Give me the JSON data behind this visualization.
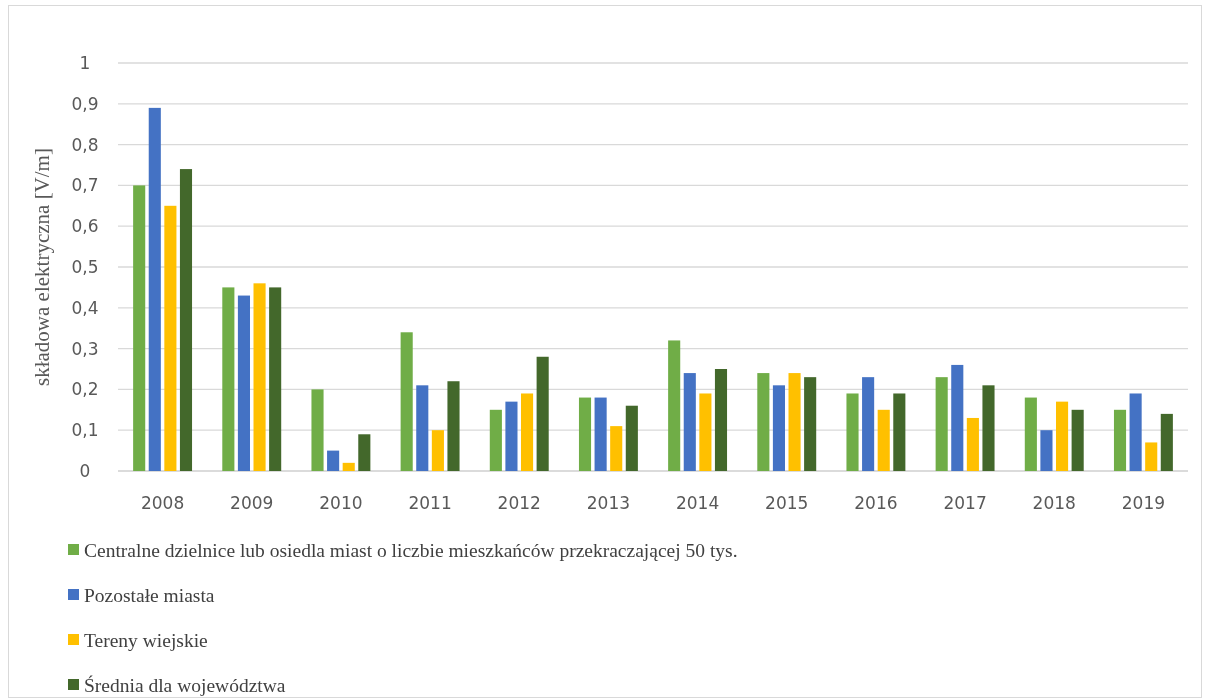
{
  "chart_data": {
    "type": "bar",
    "ylabel": "składowa elektryczna [V/m]",
    "categories": [
      "2008",
      "2009",
      "2010",
      "2011",
      "2012",
      "2013",
      "2014",
      "2015",
      "2016",
      "2017",
      "2018",
      "2019"
    ],
    "series": [
      {
        "name": "Centralne dzielnice lub osiedla miast o liczbie mieszkańców przekraczającej 50 tys.",
        "color": "#70ad47",
        "values": [
          0.7,
          0.45,
          0.2,
          0.34,
          0.15,
          0.18,
          0.32,
          0.24,
          0.19,
          0.23,
          0.18,
          0.15
        ]
      },
      {
        "name": "Pozostałe miasta",
        "color": "#4472c4",
        "values": [
          0.89,
          0.43,
          0.05,
          0.21,
          0.17,
          0.18,
          0.24,
          0.21,
          0.23,
          0.26,
          0.1,
          0.19
        ]
      },
      {
        "name": "Tereny wiejskie",
        "color": "#ffc000",
        "values": [
          0.65,
          0.46,
          0.02,
          0.1,
          0.19,
          0.11,
          0.19,
          0.24,
          0.15,
          0.13,
          0.17,
          0.07
        ]
      },
      {
        "name": "Średnia dla województwa",
        "color": "#43682b",
        "values": [
          0.74,
          0.45,
          0.09,
          0.22,
          0.28,
          0.16,
          0.25,
          0.23,
          0.19,
          0.21,
          0.15,
          0.14
        ]
      }
    ],
    "ylim": [
      0,
      1
    ],
    "yticks": [
      0,
      {
        "value": 0.1,
        "label": "0,1"
      },
      {
        "value": 0.2,
        "label": "0,2"
      },
      {
        "value": 0.3,
        "label": "0,3"
      },
      {
        "value": 0.4,
        "label": "0,4"
      },
      {
        "value": 0.5,
        "label": "0,5"
      },
      {
        "value": 0.6,
        "label": "0,6"
      },
      {
        "value": 0.7,
        "label": "0,7"
      },
      {
        "value": 0.8,
        "label": "0,8"
      },
      {
        "value": 0.9,
        "label": "0,9"
      },
      1
    ],
    "grid": true,
    "legend": "bottom"
  }
}
